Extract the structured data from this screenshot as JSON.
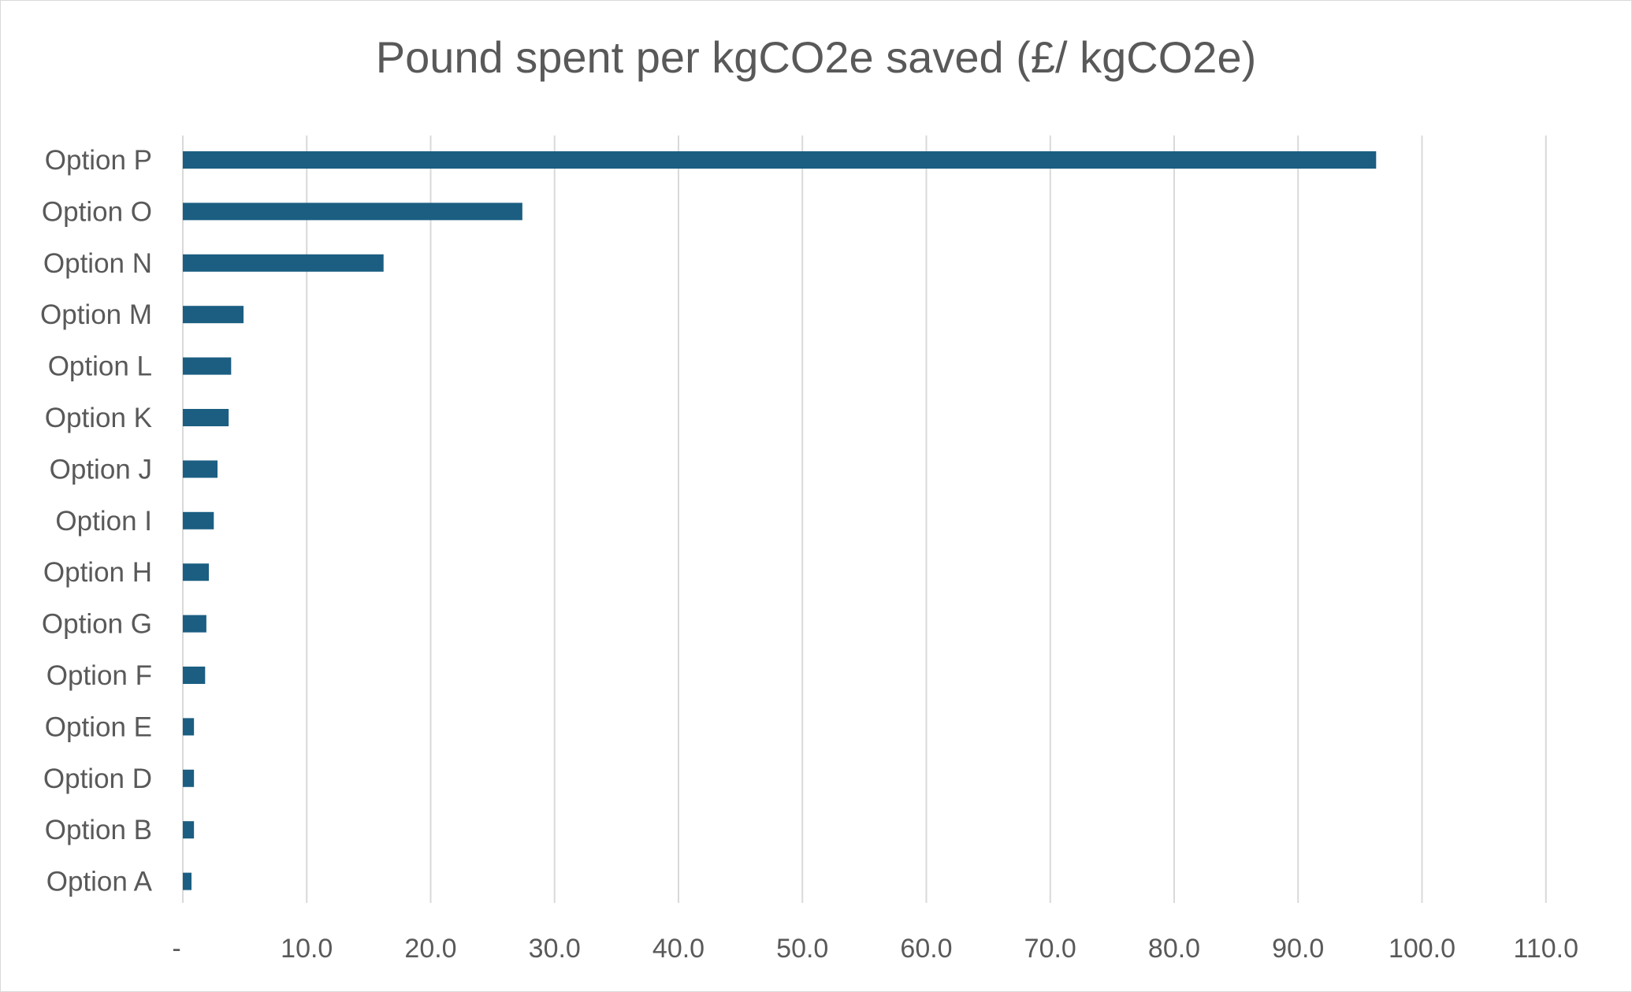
{
  "chart_data": {
    "type": "bar",
    "orientation": "horizontal",
    "title": "Pound spent per kgCO2e saved (£/ kgCO2e)",
    "xlabel": "",
    "ylabel": "",
    "categories": [
      "Option P",
      "Option O",
      "Option N",
      "Option M",
      "Option L",
      "Option K",
      "Option J",
      "Option I",
      "Option H",
      "Option G",
      "Option F",
      "Option E",
      "Option D",
      "Option B",
      "Option A"
    ],
    "values": [
      96.3,
      27.4,
      16.2,
      4.9,
      3.9,
      3.7,
      2.8,
      2.5,
      2.1,
      1.9,
      1.8,
      0.9,
      0.9,
      0.9,
      0.7
    ],
    "xlim": [
      0,
      110
    ],
    "xticks": [
      0,
      10,
      20,
      30,
      40,
      50,
      60,
      70,
      80,
      90,
      100,
      110
    ],
    "xtick_labels": [
      "-",
      "10.0",
      "20.0",
      "30.0",
      "40.0",
      "50.0",
      "60.0",
      "70.0",
      "80.0",
      "90.0",
      "100.0",
      "110.0"
    ],
    "grid": "vertical",
    "legend": "none",
    "bar_color": "#1b5e82",
    "grid_color": "#d9d9d9"
  }
}
